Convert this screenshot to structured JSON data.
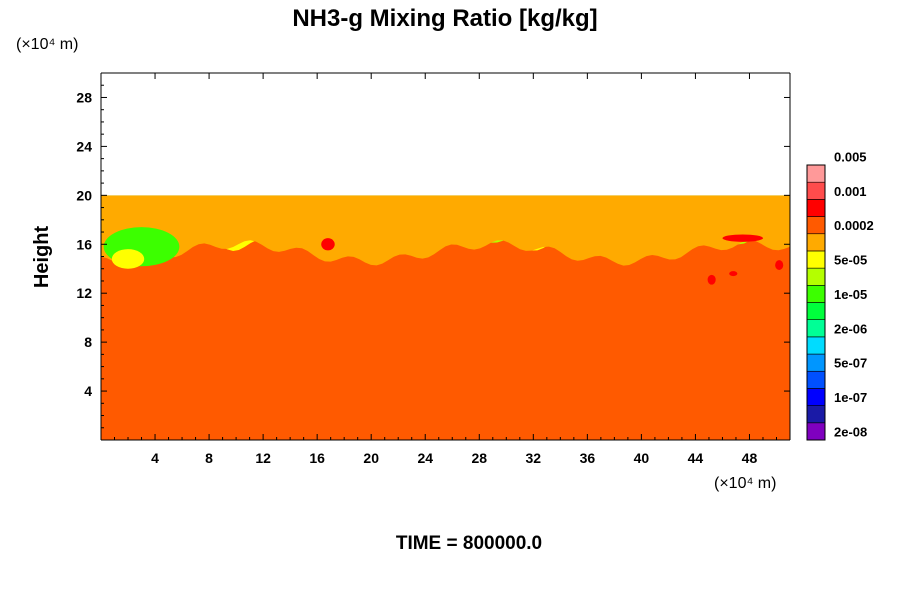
{
  "chart_data": {
    "type": "heatmap",
    "title": "NH3-g Mixing Ratio [kg/kg]",
    "xlabel": "",
    "ylabel": "Height",
    "x_unit": "(×10⁴ m)",
    "y_unit": "(×10⁴ m)",
    "xlim": [
      0,
      51
    ],
    "ylim": [
      0,
      30
    ],
    "xticks": [
      4,
      8,
      12,
      16,
      20,
      24,
      28,
      32,
      36,
      40,
      44,
      48
    ],
    "yticks": [
      4,
      8,
      12,
      16,
      20,
      24,
      28
    ],
    "footer": "TIME = 800000.0",
    "legend_position": "right",
    "colorbar": {
      "colors": [
        "#7f00bf",
        "#1a1aa6",
        "#0000ff",
        "#0050ff",
        "#0096ff",
        "#00dcff",
        "#00ff96",
        "#00ff3c",
        "#3cff00",
        "#b4ff00",
        "#ffff00",
        "#ffaa00",
        "#ff5a00",
        "#ff0000",
        "#ff4c4c",
        "#ff9999"
      ],
      "labels": [
        "2e-08",
        "1e-07",
        "5e-07",
        "2e-06",
        "1e-05",
        "5e-05",
        "0.0002",
        "0.001",
        "0.005"
      ]
    },
    "background_color": "#ff5a00",
    "upper_band_color": "#ffaa00",
    "field_top_height": 20
  }
}
